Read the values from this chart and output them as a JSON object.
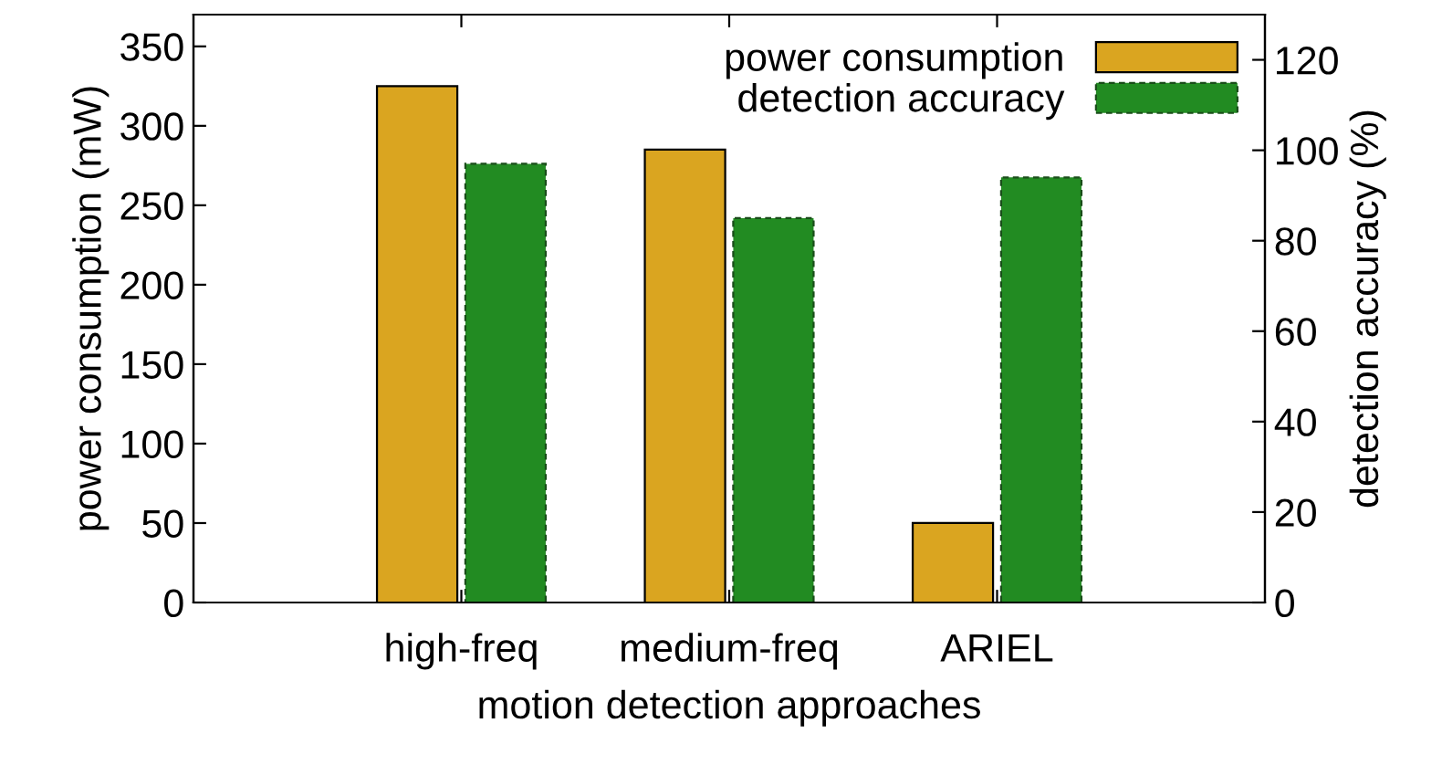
{
  "chart_data": {
    "type": "bar",
    "xlabel": "motion detection approaches",
    "ylabel": "power consumption (mW)",
    "y2label": "detection accuracy (%)",
    "categories": [
      "high-freq",
      "medium-freq",
      "ARIEL"
    ],
    "series": [
      {
        "name": "power consumption",
        "color": "#daa520",
        "values": [
          325,
          285,
          50
        ]
      },
      {
        "name": "detection accuracy",
        "color": "#228b22",
        "values": [
          97,
          85,
          94
        ],
        "axis": "y2"
      }
    ],
    "ylim": [
      0,
      370
    ],
    "yticks": [
      0,
      50,
      100,
      150,
      200,
      250,
      300,
      350
    ],
    "y2lim": [
      0,
      130
    ],
    "y2ticks": [
      0,
      20,
      40,
      60,
      80,
      100,
      120
    ],
    "legend": "top right",
    "grid": false
  }
}
